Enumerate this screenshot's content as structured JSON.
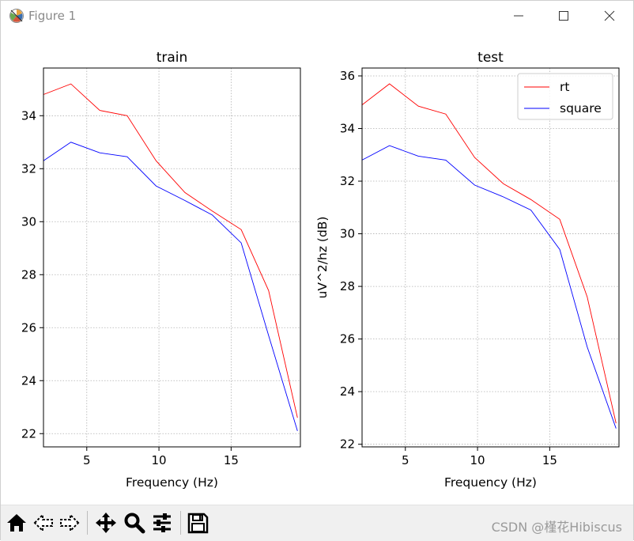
{
  "window": {
    "title": "Figure 1",
    "icon": "matplotlib-logo-icon",
    "controls": [
      "minimize-icon",
      "maximize-icon",
      "close-icon"
    ]
  },
  "chart_data": [
    {
      "type": "line",
      "title": "train",
      "xlabel": "Frequency (Hz)",
      "ylabel": "",
      "xlim": [
        2,
        19.8
      ],
      "ylim": [
        21.5,
        35.8
      ],
      "xticks": [
        5,
        10,
        15
      ],
      "yticks": [
        22,
        24,
        26,
        28,
        30,
        32,
        34
      ],
      "grid": true,
      "legend": false,
      "x": [
        2,
        3.9,
        5.9,
        7.8,
        9.8,
        11.8,
        13.7,
        15.7,
        17.6,
        19.6
      ],
      "series": [
        {
          "name": "rt",
          "color": "#ff0000",
          "values": [
            34.8,
            35.2,
            34.2,
            34.0,
            32.3,
            31.1,
            30.4,
            29.7,
            27.4,
            22.6
          ]
        },
        {
          "name": "square",
          "color": "#0000ff",
          "values": [
            32.3,
            33.0,
            32.6,
            32.45,
            31.35,
            30.8,
            30.25,
            29.2,
            25.7,
            22.1
          ]
        }
      ]
    },
    {
      "type": "line",
      "title": "test",
      "xlabel": "Frequency (Hz)",
      "ylabel": "uV^2/hz (dB)",
      "xlim": [
        2,
        19.8
      ],
      "ylim": [
        21.9,
        36.3
      ],
      "xticks": [
        5,
        10,
        15
      ],
      "yticks": [
        22,
        24,
        26,
        28,
        30,
        32,
        34,
        36
      ],
      "grid": true,
      "legend": true,
      "legend_position": "top-right",
      "x": [
        2,
        3.9,
        5.9,
        7.8,
        9.8,
        11.8,
        13.7,
        15.7,
        17.6,
        19.6
      ],
      "series": [
        {
          "name": "rt",
          "color": "#ff0000",
          "values": [
            34.9,
            35.7,
            34.85,
            34.55,
            32.9,
            31.9,
            31.3,
            30.55,
            27.6,
            22.8
          ]
        },
        {
          "name": "square",
          "color": "#0000ff",
          "values": [
            32.8,
            33.35,
            32.95,
            32.8,
            31.85,
            31.4,
            30.9,
            29.4,
            25.7,
            22.6
          ]
        }
      ]
    }
  ],
  "toolbar": {
    "buttons": [
      "home-icon",
      "back-arrow-icon",
      "forward-arrow-icon",
      "pan-icon",
      "zoom-icon",
      "configure-subplots-icon",
      "save-icon"
    ],
    "watermark": "CSDN @槿花Hibiscus"
  }
}
